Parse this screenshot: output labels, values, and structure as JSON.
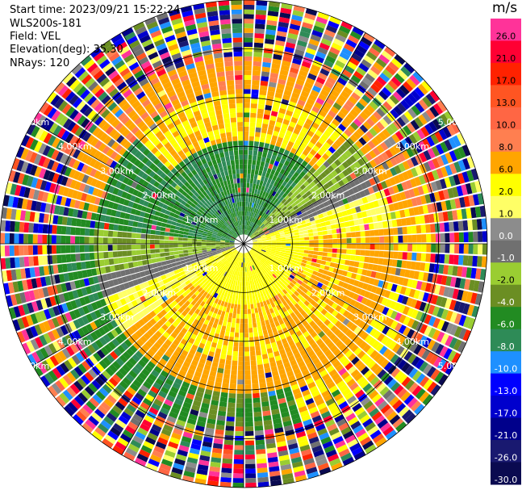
{
  "header": {
    "start_time": "Start time: 2023/09/21 15:22:24",
    "instrument": "WLS200s-181",
    "field": "Field: VEL",
    "elevation": "Elevation(deg): 35.30",
    "nrays": "NRays: 120"
  },
  "colorbar": {
    "unit": "m/s",
    "bins": [
      {
        "label": "26.0",
        "color": "#ff3399"
      },
      {
        "label": "21.0",
        "color": "#ff0033"
      },
      {
        "label": "17.0",
        "color": "#ff2200"
      },
      {
        "label": "13.0",
        "color": "#ff5522"
      },
      {
        "label": "10.0",
        "color": "#ff6644"
      },
      {
        "label": "8.0",
        "color": "#ff7f50"
      },
      {
        "label": "6.0",
        "color": "#ffa500"
      },
      {
        "label": "2.0",
        "color": "#ffff00"
      },
      {
        "label": "1.0",
        "color": "#ffff66"
      },
      {
        "label": "0.0",
        "color": "#8c8c8c"
      },
      {
        "label": "-1.0",
        "color": "#707070"
      },
      {
        "label": "-2.0",
        "color": "#9acd32"
      },
      {
        "label": "-4.0",
        "color": "#6b8e23"
      },
      {
        "label": "-6.0",
        "color": "#228b22"
      },
      {
        "label": "-8.0",
        "color": "#2e8b57"
      },
      {
        "label": "-10.0",
        "color": "#1e90ff"
      },
      {
        "label": "-13.0",
        "color": "#0000ff"
      },
      {
        "label": "-17.0",
        "color": "#0000cd"
      },
      {
        "label": "-21.0",
        "color": "#00008b"
      },
      {
        "label": "-26.0",
        "color": "#191970"
      },
      {
        "label": "-30.0",
        "color": "#0a0a50"
      }
    ]
  },
  "chart_data": {
    "type": "heatmap",
    "plot": "PPI polar velocity scan",
    "ring_labels": [
      "1.00km",
      "2.00km",
      "3.00km",
      "4.00km",
      "5.00km"
    ],
    "rings_km": [
      1,
      2,
      3,
      4,
      5
    ],
    "n_rays": 120,
    "max_range_km": 5
  }
}
